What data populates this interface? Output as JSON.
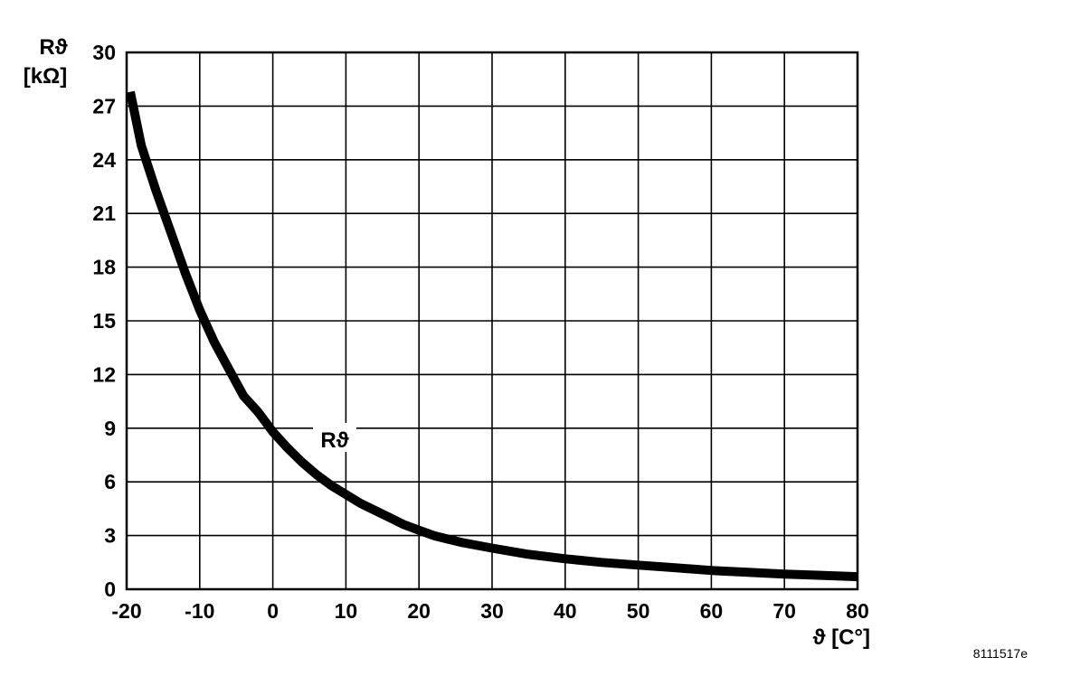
{
  "chart_data": {
    "type": "line",
    "ylabel_symbol": "Rϑ",
    "ylabel_unit": "[kΩ]",
    "xlabel": "ϑ [C°]",
    "xlim": [
      -20,
      80
    ],
    "ylim": [
      0,
      30
    ],
    "x_ticks": [
      "-20",
      "-10",
      "0",
      "10",
      "20",
      "30",
      "40",
      "50",
      "60",
      "70",
      "80"
    ],
    "y_ticks": [
      "0",
      "3",
      "6",
      "9",
      "12",
      "15",
      "18",
      "21",
      "24",
      "27",
      "30"
    ],
    "grid": true,
    "series": [
      {
        "name": "Rϑ",
        "color": "#000000",
        "x": [
          -19.5,
          -18,
          -16,
          -14,
          -12,
          -10,
          -8,
          -6,
          -4,
          -2,
          0,
          2,
          4,
          6,
          8,
          10,
          12,
          14,
          16,
          18,
          20,
          22,
          24,
          26,
          28,
          30,
          35,
          40,
          45,
          50,
          55,
          60,
          65,
          70,
          75,
          80
        ],
        "y": [
          27.8,
          24.8,
          22.3,
          20.0,
          17.7,
          15.6,
          13.8,
          12.3,
          10.8,
          9.9,
          8.8,
          7.9,
          7.1,
          6.4,
          5.8,
          5.3,
          4.8,
          4.4,
          4.0,
          3.6,
          3.3,
          3.0,
          2.8,
          2.6,
          2.45,
          2.3,
          1.95,
          1.7,
          1.5,
          1.35,
          1.2,
          1.05,
          0.95,
          0.85,
          0.78,
          0.7
        ]
      }
    ]
  },
  "figure_id": "8111517e"
}
